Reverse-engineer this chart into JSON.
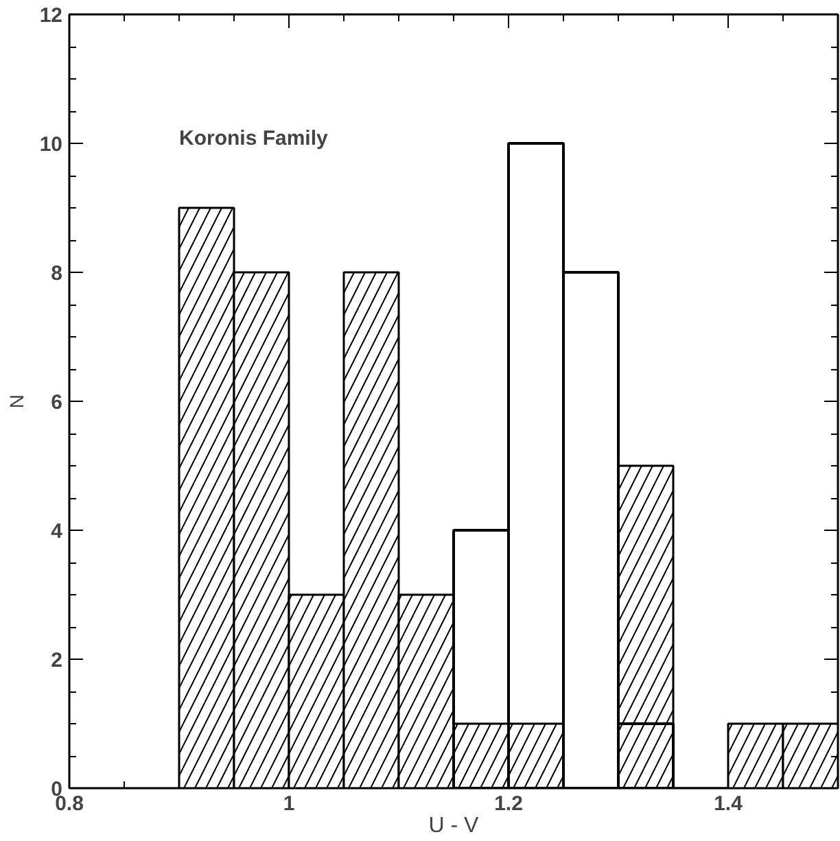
{
  "chart_data": {
    "type": "histogram",
    "xlabel": "U - V",
    "ylabel": "N",
    "annotations": [
      "Koronis Family"
    ],
    "bins": [
      0.9,
      0.95,
      1.0,
      1.05,
      1.1,
      1.15,
      1.2,
      1.25,
      1.3,
      1.35,
      1.4,
      1.45,
      1.5
    ],
    "series": [
      {
        "color": "#000000",
        "values": [
          9,
          8,
          3,
          8,
          3,
          1,
          1,
          0,
          5,
          0,
          1,
          1
        ]
      },
      {
        "color": "#000000",
        "values": [
          null,
          null,
          null,
          null,
          null,
          4,
          10,
          8,
          1,
          null,
          null,
          null
        ]
      }
    ],
    "xlim": [
      0.8,
      1.5
    ],
    "ylim": [
      0,
      12
    ],
    "xticks": [
      0.8,
      1,
      1.2,
      1.4
    ],
    "yticks": [
      0,
      2,
      4,
      6,
      8,
      10,
      12
    ],
    "grid": false
  }
}
